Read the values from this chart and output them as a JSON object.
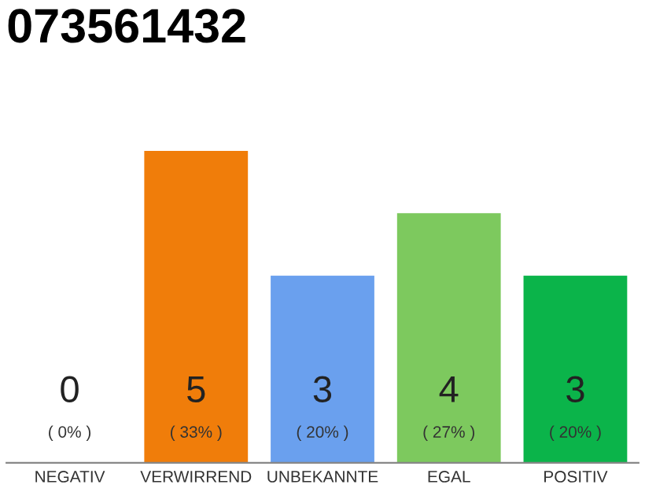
{
  "chart_data": {
    "type": "bar",
    "title": "073561432",
    "categories": [
      "NEGATIV",
      "VERWIRREND",
      "UNBEKANNTE",
      "EGAL",
      "POSITIV"
    ],
    "values": [
      0,
      5,
      3,
      4,
      3
    ],
    "colors": [
      "#555555",
      "#f07d0a",
      "#6aa0ee",
      "#7dc95e",
      "#0bb44a"
    ],
    "value_labels": [
      "0",
      "5",
      "3",
      "4",
      "3"
    ],
    "annotations": [
      "( 0% )",
      "( 33% )",
      "( 20% )",
      "( 27% )",
      "( 20% )"
    ],
    "tick_labels": "x",
    "grid": false
  }
}
